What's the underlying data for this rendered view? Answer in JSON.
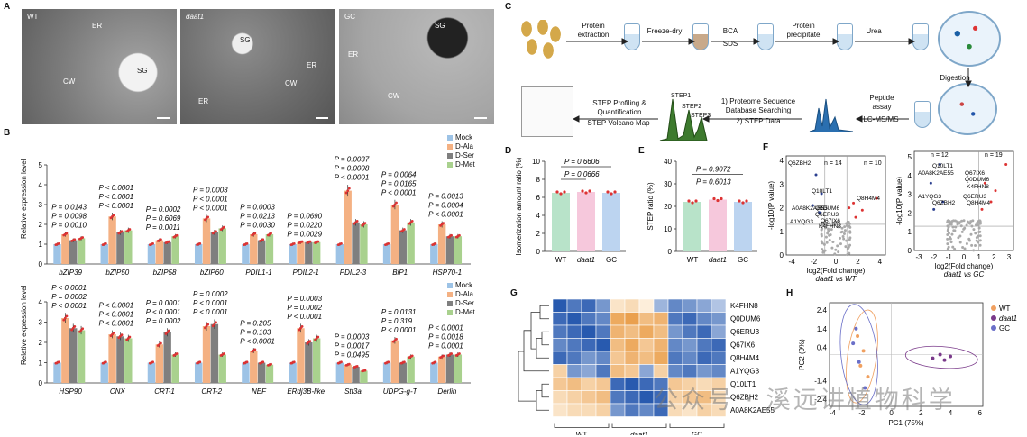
{
  "panels": {
    "A": "A",
    "B": "B",
    "C": "C",
    "D": "D",
    "E": "E",
    "F": "F",
    "G": "G",
    "H": "H"
  },
  "em": {
    "img1": {
      "tag": "WT",
      "labels": [
        "ER",
        "SG",
        "CW"
      ]
    },
    "img2": {
      "tag": "daat1",
      "labels": [
        "SG",
        "ER",
        "CW",
        "ER"
      ]
    },
    "img3": {
      "tag": "GC",
      "labels": [
        "SG",
        "ER",
        "CW"
      ]
    }
  },
  "panelB": {
    "ylabel": "Relative expression level",
    "legend": [
      "Mock",
      "D-Ala",
      "D-Ser",
      "D-Met"
    ],
    "colors": [
      "#9dc3e6",
      "#f4b183",
      "#7f7f7f",
      "#a9d18e"
    ],
    "top": {
      "genes": [
        "bZIP39",
        "bZIP50",
        "bZIP58",
        "bZIP60",
        "PDIL1-1",
        "PDIL2-1",
        "PDIL2-3",
        "BiP1",
        "HSP70-1"
      ],
      "yticks": [
        "0",
        "1",
        "2",
        "3",
        "4",
        "5"
      ],
      "pvalues": [
        [
          "P = 0.0143",
          "P = 0.0098",
          "P = 0.0010"
        ],
        [
          "P < 0.0001",
          "P < 0.0001",
          "P < 0.0001"
        ],
        [
          "P = 0.0002",
          "P = 0.6069",
          "P = 0.0011"
        ],
        [
          "P = 0.0003",
          "P < 0.0001",
          "P < 0.0001"
        ],
        [
          "P = 0.0003",
          "P = 0.0213",
          "P = 0.0030"
        ],
        [
          "P = 0.0690",
          "P = 0.0220",
          "P = 0.0029"
        ],
        [
          "P = 0.0037",
          "P = 0.0008",
          "P < 0.0001"
        ],
        [
          "P = 0.0064",
          "P = 0.0165",
          "P < 0.0001"
        ],
        [
          "P = 0.0013",
          "P = 0.0004",
          "P < 0.0001"
        ]
      ]
    },
    "bottom": {
      "genes": [
        "HSP90",
        "CNX",
        "CRT-1",
        "CRT-2",
        "NEF",
        "ERdj3B-like",
        "Stt3a",
        "UDPG-g-T",
        "Derlin"
      ],
      "yticks": [
        "0",
        "1",
        "2",
        "3",
        "4"
      ],
      "pvalues": [
        [
          "P < 0.0001",
          "P = 0.0002",
          "P < 0.0001"
        ],
        [
          "P < 0.0001",
          "P < 0.0001",
          "P < 0.0001"
        ],
        [
          "P = 0.0001",
          "P < 0.0001",
          "P = 0.0002"
        ],
        [
          "P = 0.0002",
          "P < 0.0001",
          "P < 0.0001"
        ],
        [
          "P = 0.205",
          "P = 0.103",
          "P < 0.0001"
        ],
        [
          "P = 0.0003",
          "P = 0.0002",
          "P < 0.0001"
        ],
        [
          "P = 0.0003",
          "P = 0.0017",
          "P = 0.0495"
        ],
        [
          "P = 0.0131",
          "P = 0.319",
          "P < 0.0001"
        ],
        [
          "P < 0.0001",
          "P = 0.0018",
          "P = 0.0001"
        ]
      ]
    }
  },
  "panelC": {
    "steps": [
      "Protein extraction",
      "Freeze-dry",
      "BCA",
      "SDS",
      "Protein precipitate",
      "Urea",
      "Digestion",
      "Peptide assay",
      "LC-MS/MS",
      "1) Proteome Sequence Database Searching",
      "2) STEP Data",
      "STEP Profiling & Quantification",
      "STEP Volcano Map",
      "STEP1",
      "STEP2",
      "STEP3"
    ]
  },
  "chart_data": [
    {
      "type": "bar",
      "id": "B-top",
      "categories": [
        "bZIP39",
        "bZIP50",
        "bZIP58",
        "bZIP60",
        "PDIL1-1",
        "PDIL2-1",
        "PDIL2-3",
        "BiP1",
        "HSP70-1"
      ],
      "ylabel": "Relative expression level",
      "ylim": [
        0,
        5
      ],
      "series": [
        {
          "name": "Mock",
          "values": [
            1,
            1,
            1,
            1,
            1,
            1,
            1,
            1,
            1
          ]
        },
        {
          "name": "D-Ala",
          "values": [
            1.5,
            2.4,
            1.2,
            2.3,
            1.5,
            1.1,
            3.7,
            3.0,
            2.0
          ]
        },
        {
          "name": "D-Ser",
          "values": [
            1.2,
            1.6,
            1.1,
            1.6,
            1.2,
            1.1,
            2.1,
            1.7,
            1.4
          ]
        },
        {
          "name": "D-Met",
          "values": [
            1.3,
            1.7,
            1.4,
            1.8,
            1.5,
            1.1,
            2.0,
            2.1,
            1.4
          ]
        }
      ]
    },
    {
      "type": "bar",
      "id": "B-bottom",
      "categories": [
        "HSP90",
        "CNX",
        "CRT-1",
        "CRT-2",
        "NEF",
        "ERdj3B-like",
        "Stt3a",
        "UDPG-g-T",
        "Derlin"
      ],
      "ylabel": "Relative expression level",
      "ylim": [
        0,
        4
      ],
      "series": [
        {
          "name": "Mock",
          "values": [
            1,
            1,
            1,
            1,
            1,
            1,
            1,
            1,
            1
          ]
        },
        {
          "name": "D-Ala",
          "values": [
            3.2,
            2.4,
            1.9,
            2.8,
            1.6,
            2.7,
            0.9,
            2.1,
            1.3
          ]
        },
        {
          "name": "D-Ser",
          "values": [
            2.7,
            2.3,
            2.5,
            2.9,
            1.0,
            2.0,
            0.8,
            1.0,
            1.4
          ]
        },
        {
          "name": "D-Met",
          "values": [
            2.6,
            2.2,
            1.4,
            1.4,
            0.9,
            2.2,
            0.6,
            1.3,
            1.4
          ]
        }
      ]
    },
    {
      "type": "bar",
      "id": "D",
      "categories": [
        "WT",
        "daat1",
        "GC"
      ],
      "values": [
        6.5,
        6.6,
        6.5
      ],
      "ylabel": "Isomerization amount ratio (%)",
      "yticks": [
        "0",
        "2",
        "4",
        "6",
        "8",
        "10"
      ],
      "ylim": [
        0,
        10
      ],
      "annotations": [
        "P = 0.6606",
        "P = 0.0666"
      ]
    },
    {
      "type": "bar",
      "id": "E",
      "categories": [
        "WT",
        "daat1",
        "GC"
      ],
      "values": [
        22,
        23,
        22
      ],
      "ylabel": "STEP ratio (%)",
      "yticks": [
        "0",
        "10",
        "20",
        "30",
        "40"
      ],
      "ylim": [
        0,
        40
      ],
      "annotations": [
        "P = 0.9072",
        "P = 0.6013"
      ]
    },
    {
      "type": "scatter",
      "id": "F-left",
      "xlabel": "log2(Fold change)",
      "ylabel": "-log10(P value)",
      "subtitle": "daat1 vs WT",
      "xticks": [
        "-4",
        "-2",
        "0",
        "2",
        "4"
      ],
      "yticks": [
        "0",
        "1",
        "2",
        "3",
        "4"
      ],
      "counts": [
        "n = 14",
        "n = 10"
      ],
      "labels": [
        "Q6ZBH2",
        "Q10LT1",
        "A0A8K2AE55",
        "Q0DUM6",
        "Q6ERU3",
        "Q8H4M4",
        "Q67IX6",
        "K4FHN8",
        "A1YQG3"
      ]
    },
    {
      "type": "scatter",
      "id": "F-right",
      "xlabel": "log2(Fold change)",
      "ylabel": "-log10(P value)",
      "subtitle": "daat1 vs GC",
      "xticks": [
        "-3",
        "-2",
        "-1",
        "0",
        "1",
        "2",
        "3"
      ],
      "yticks": [
        "0",
        "1",
        "2",
        "3",
        "4",
        "5"
      ],
      "counts": [
        "n = 12",
        "n = 19"
      ],
      "labels": [
        "Q10LT1",
        "A0A8K2AE55",
        "Q67IX6",
        "Q0DUM6",
        "K4FHN8",
        "A1YQG3",
        "Q6ERU3",
        "Q6ZBH2",
        "Q8H4M4"
      ]
    },
    {
      "type": "heatmap",
      "id": "G",
      "rows": [
        "K4FHN8",
        "Q0DUM6",
        "Q6ERU3",
        "Q67IX6",
        "Q8H4M4",
        "A1YQG3",
        "Q10LT1",
        "Q6ZBH2",
        "A0A8K2AE55"
      ],
      "groups": [
        "WT",
        "daat1",
        "GC"
      ],
      "values": [
        [
          -1,
          -0.8,
          -0.9,
          -0.6,
          0.2,
          0.3,
          0.1,
          -0.4,
          -0.7,
          -0.6,
          -0.5,
          -0.3
        ],
        [
          -0.9,
          -1,
          -0.8,
          -0.7,
          0.8,
          0.9,
          0.6,
          0.7,
          -0.8,
          -0.9,
          -0.7,
          -0.6
        ],
        [
          -0.8,
          -0.9,
          -1,
          -0.8,
          0.7,
          0.6,
          0.8,
          0.6,
          -0.6,
          -0.8,
          -0.9,
          -0.5
        ],
        [
          -0.7,
          -0.8,
          -0.9,
          -1,
          0.6,
          0.8,
          0.5,
          0.7,
          -0.7,
          -0.6,
          -0.8,
          -0.9
        ],
        [
          -0.9,
          -0.8,
          -0.6,
          -0.7,
          0.5,
          0.7,
          0.6,
          0.8,
          -0.8,
          -0.7,
          -0.9,
          -0.8
        ],
        [
          0.4,
          -0.6,
          -0.5,
          -0.8,
          0.6,
          0.5,
          -0.5,
          0.4,
          -0.7,
          -0.8,
          -0.6,
          -0.7
        ],
        [
          0.5,
          0.6,
          0.4,
          0.5,
          -0.9,
          -1,
          -0.9,
          -0.8,
          0.5,
          0.4,
          0.3,
          0.4
        ],
        [
          0.3,
          0.4,
          0.5,
          0.6,
          -0.8,
          -0.9,
          -1,
          -0.9,
          0.4,
          0.5,
          0.6,
          0.3
        ],
        [
          0.2,
          0.3,
          0.3,
          0.4,
          -0.6,
          -0.8,
          -0.7,
          -0.9,
          0.3,
          0.2,
          0.4,
          0.3
        ]
      ]
    },
    {
      "type": "scatter",
      "id": "H",
      "xlabel": "PC1 (75%)",
      "ylabel": "PC2 (9%)",
      "xticks": [
        "-4",
        "-2",
        "0",
        "2",
        "4",
        "6"
      ],
      "yticks": [
        "-2.4",
        "-1.4",
        "0.4",
        "1.4",
        "2.4"
      ],
      "series": [
        {
          "name": "WT",
          "x": [
            -2.3,
            -1.9,
            -2.1,
            -1.6
          ],
          "y": [
            1.0,
            0.2,
            -0.6,
            -1.2
          ]
        },
        {
          "name": "daat1",
          "x": [
            2.8,
            3.3,
            3.6,
            4.0
          ],
          "y": [
            -0.2,
            0.0,
            -0.3,
            -0.1
          ]
        },
        {
          "name": "GC",
          "x": [
            -2.6,
            -2.2,
            -1.8,
            -2.4
          ],
          "y": [
            0.6,
            -0.4,
            -1.8,
            1.4
          ]
        }
      ]
    }
  ],
  "watermark": "公众号 · 溪远讲植物科学"
}
